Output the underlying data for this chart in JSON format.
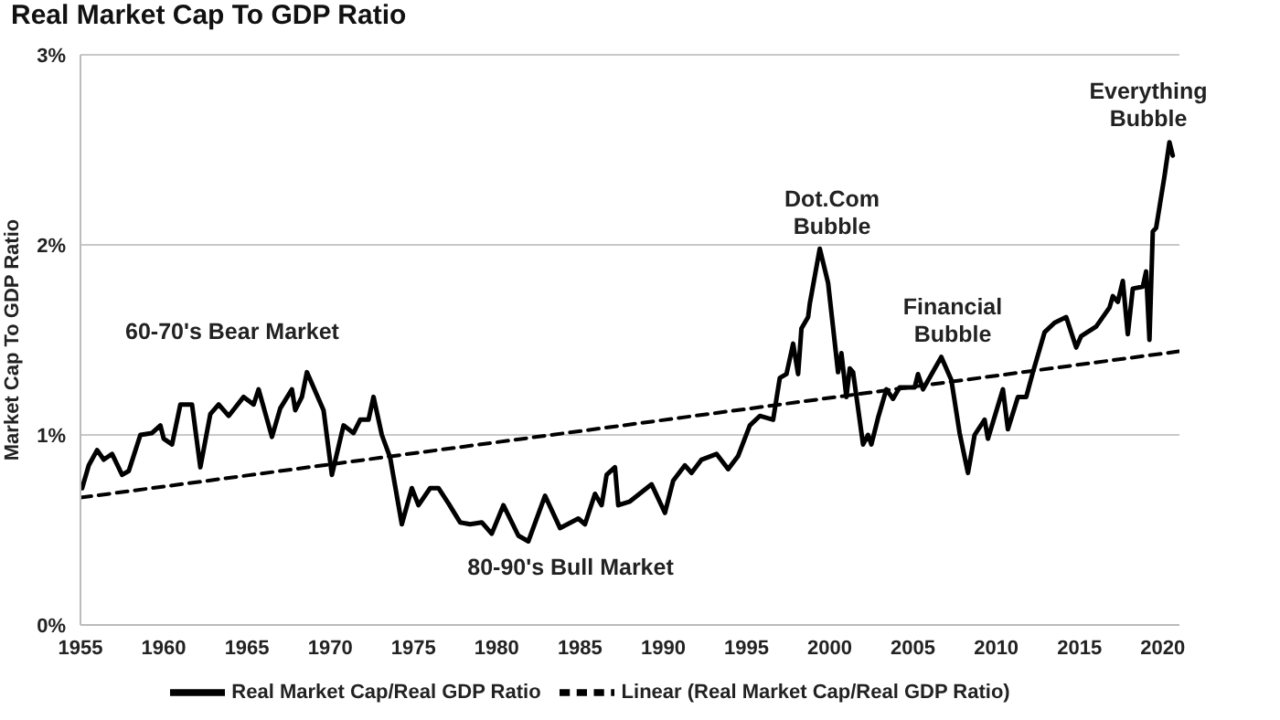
{
  "chart_data": {
    "type": "line",
    "title": "Real Market Cap To GDP Ratio",
    "ylabel": "Market Cap To GDP Ratio",
    "xlim": [
      1955,
      2021
    ],
    "xticks": [
      1955,
      1960,
      1965,
      1970,
      1975,
      1980,
      1985,
      1990,
      1995,
      2000,
      2005,
      2010,
      2015,
      2020
    ],
    "ylim": [
      0,
      3
    ],
    "yticks": [
      {
        "value": 0,
        "label": "0%"
      },
      {
        "value": 1,
        "label": "1%"
      },
      {
        "value": 2,
        "label": "2%"
      },
      {
        "value": 3,
        "label": "3%"
      }
    ],
    "grid": "y",
    "legend": "bottom",
    "marker": "none",
    "series": [
      {
        "name": "Real Market Cap/Real GDP Ratio",
        "line_style": "solid",
        "color": "#000000",
        "x": [
          1955.1,
          1955.5,
          1956.0,
          1956.4,
          1956.9,
          1957.5,
          1957.9,
          1958.6,
          1959.3,
          1959.8,
          1960.0,
          1960.5,
          1961.0,
          1961.7,
          1962.2,
          1962.8,
          1963.3,
          1963.9,
          1964.8,
          1965.4,
          1965.7,
          1966.5,
          1967.0,
          1967.7,
          1967.9,
          1968.3,
          1968.6,
          1969.6,
          1970.1,
          1970.8,
          1971.4,
          1971.8,
          1972.3,
          1972.6,
          1973.1,
          1973.6,
          1974.3,
          1974.9,
          1975.3,
          1976.0,
          1976.5,
          1977.1,
          1977.8,
          1978.4,
          1979.1,
          1979.7,
          1980.4,
          1981.3,
          1981.9,
          1982.9,
          1983.8,
          1984.9,
          1985.3,
          1985.9,
          1986.3,
          1986.6,
          1987.1,
          1987.3,
          1988.0,
          1989.3,
          1990.1,
          1990.6,
          1991.3,
          1991.7,
          1992.3,
          1993.2,
          1993.9,
          1994.5,
          1995.2,
          1995.8,
          1996.6,
          1997.0,
          1997.4,
          1997.8,
          1998.1,
          1998.3,
          1998.7,
          1998.8,
          1999.4,
          1999.9,
          2000.5,
          2000.7,
          2001.0,
          2001.2,
          2001.4,
          2002.0,
          2002.3,
          2002.5,
          2002.9,
          2003.4,
          2003.8,
          2004.2,
          2005.1,
          2005.3,
          2005.6,
          2006.7,
          2007.3,
          2007.8,
          2008.3,
          2008.7,
          2009.3,
          2009.5,
          2010.4,
          2010.7,
          2011.3,
          2011.8,
          2012.2,
          2012.9,
          2013.5,
          2014.2,
          2014.8,
          2015.1,
          2016.0,
          2016.8,
          2017.0,
          2017.3,
          2017.6,
          2017.9,
          2018.2,
          2018.8,
          2019.0,
          2019.2,
          2019.4,
          2019.6,
          2020.1,
          2020.4,
          2020.6
        ],
        "values": [
          0.72,
          0.84,
          0.92,
          0.87,
          0.9,
          0.79,
          0.81,
          1.0,
          1.01,
          1.05,
          0.98,
          0.95,
          1.16,
          1.16,
          0.83,
          1.11,
          1.16,
          1.1,
          1.2,
          1.16,
          1.24,
          0.99,
          1.14,
          1.24,
          1.13,
          1.2,
          1.33,
          1.13,
          0.79,
          1.05,
          1.01,
          1.08,
          1.08,
          1.2,
          1.0,
          0.88,
          0.53,
          0.72,
          0.63,
          0.72,
          0.72,
          0.64,
          0.54,
          0.53,
          0.54,
          0.48,
          0.63,
          0.47,
          0.44,
          0.68,
          0.51,
          0.56,
          0.53,
          0.69,
          0.63,
          0.79,
          0.83,
          0.63,
          0.65,
          0.74,
          0.59,
          0.76,
          0.84,
          0.8,
          0.87,
          0.9,
          0.82,
          0.89,
          1.05,
          1.1,
          1.08,
          1.3,
          1.32,
          1.48,
          1.32,
          1.56,
          1.62,
          1.69,
          1.98,
          1.8,
          1.33,
          1.43,
          1.2,
          1.35,
          1.33,
          0.95,
          1.0,
          0.95,
          1.09,
          1.24,
          1.19,
          1.25,
          1.25,
          1.32,
          1.24,
          1.41,
          1.29,
          1.01,
          0.8,
          1.0,
          1.08,
          0.98,
          1.24,
          1.03,
          1.2,
          1.2,
          1.33,
          1.54,
          1.59,
          1.62,
          1.46,
          1.52,
          1.57,
          1.67,
          1.73,
          1.7,
          1.81,
          1.53,
          1.77,
          1.78,
          1.86,
          1.5,
          2.07,
          2.09,
          2.36,
          2.54,
          2.47
        ]
      },
      {
        "name": "Linear (Real Market Cap/Real GDP Ratio)",
        "line_style": "dashed",
        "color": "#000000",
        "x": [
          1955,
          2021
        ],
        "values": [
          0.67,
          1.44
        ]
      }
    ],
    "annotations": [
      "60-70's Bear Market",
      "80-90's Bull Market",
      "Dot.Com\nBubble",
      "Financial\nBubble",
      "Everything\nBubble"
    ]
  }
}
